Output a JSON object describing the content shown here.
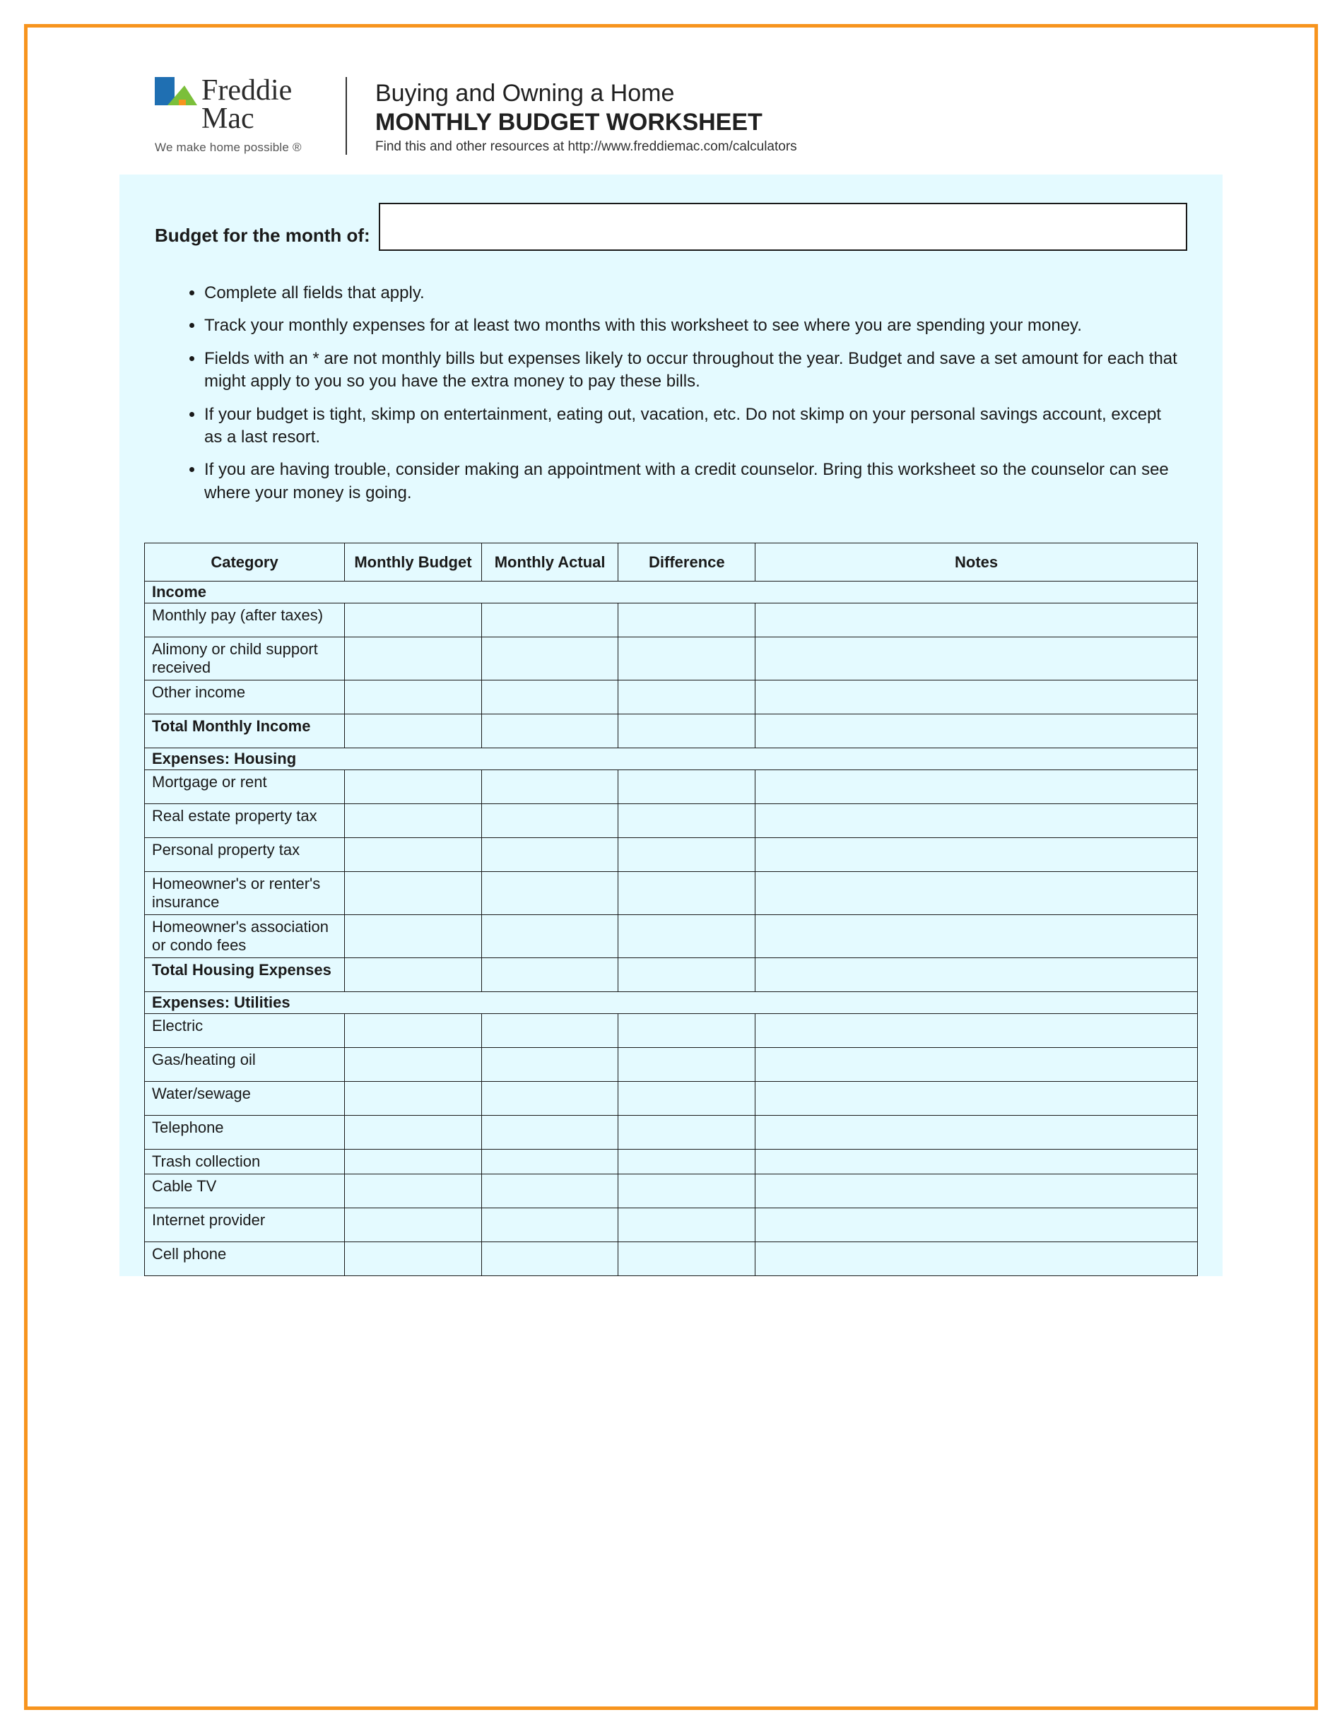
{
  "colors": {
    "frame_border": "#f7941e",
    "card_bg": "#e4faff",
    "page_bg": "#ffffff",
    "text": "#1a1a1a",
    "table_border": "#1a1a1a",
    "logo_blue": "#1f6fb2",
    "logo_green": "#7bbf3a",
    "logo_orange": "#f7941e"
  },
  "logo": {
    "line1": "Freddie",
    "line2": "Mac",
    "tagline": "We make home possible ®"
  },
  "header": {
    "heading": "Buying and Owning a Home",
    "subheading": "MONTHLY BUDGET WORKSHEET",
    "resource_line": "Find this and other resources at http://www.freddiemac.com/calculators"
  },
  "month_label": "Budget for the month of:",
  "instructions": [
    "Complete all fields that apply.",
    "Track your monthly expenses for at least two months with this worksheet to see where you are spending your money.",
    "Fields with an * are not monthly bills but expenses likely to occur throughout the year.  Budget and save a set amount for each that might apply to you so you have the extra money to pay these bills.",
    "If your budget is tight, skimp on entertainment, eating out, vacation, etc.   Do not skimp on your personal savings account, except as a last resort.",
    "If you are having trouble, consider making an appointment with a credit counselor.  Bring this worksheet so the counselor can see where your money is going."
  ],
  "table": {
    "columns": [
      "Category",
      "Monthly Budget",
      "Monthly Actual",
      "Difference",
      "Notes"
    ],
    "col_widths_pct": [
      19,
      13,
      13,
      13,
      42
    ],
    "header_fontsize": 22,
    "cell_fontsize": 22,
    "rows": [
      {
        "type": "section",
        "label": "Income"
      },
      {
        "type": "item",
        "label": "Monthly pay (after taxes)",
        "height": "tall"
      },
      {
        "type": "item",
        "label": "Alimony or child support received",
        "height": "tall"
      },
      {
        "type": "item",
        "label": "Other income",
        "height": "tall"
      },
      {
        "type": "total",
        "label": "Total Monthly Income",
        "height": "tall"
      },
      {
        "type": "section",
        "label": "Expenses:  Housing"
      },
      {
        "type": "item",
        "label": "Mortgage or rent",
        "height": "tall"
      },
      {
        "type": "item",
        "label": "Real estate property tax",
        "height": "tall"
      },
      {
        "type": "item",
        "label": "Personal property tax",
        "height": "tall"
      },
      {
        "type": "item",
        "label": "Homeowner's or renter's insurance",
        "height": "tall"
      },
      {
        "type": "item",
        "label": "Homeowner's association or condo fees",
        "height": "tall"
      },
      {
        "type": "total",
        "label": "Total Housing Expenses",
        "height": "tall"
      },
      {
        "type": "section",
        "label": "Expenses:  Utilities"
      },
      {
        "type": "item",
        "label": "Electric",
        "height": "tall"
      },
      {
        "type": "item",
        "label": "Gas/heating oil",
        "height": "tall"
      },
      {
        "type": "item",
        "label": "Water/sewage",
        "height": "tall"
      },
      {
        "type": "item",
        "label": "Telephone",
        "height": "tall"
      },
      {
        "type": "item",
        "label": "Trash collection",
        "height": "short"
      },
      {
        "type": "item",
        "label": "Cable TV",
        "height": "tall"
      },
      {
        "type": "item",
        "label": "Internet provider",
        "height": "tall"
      },
      {
        "type": "item",
        "label": "Cell phone",
        "height": "tall"
      }
    ]
  }
}
